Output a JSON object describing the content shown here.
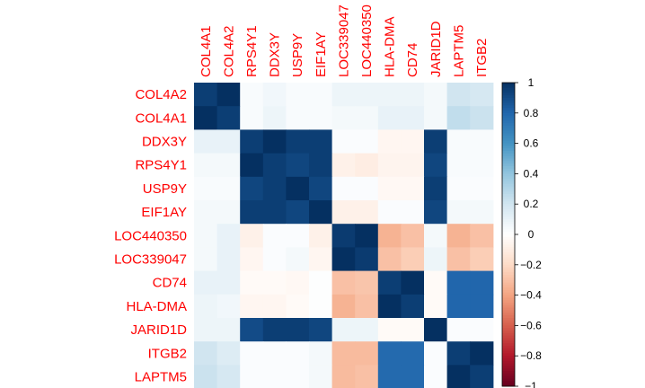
{
  "chart_data": {
    "type": "heatmap",
    "title": "",
    "columns": [
      "COL4A1",
      "COL4A2",
      "RPS4Y1",
      "DDX3Y",
      "USP9Y",
      "EIF1AY",
      "LOC339047",
      "LOC440350",
      "HLA-DMA",
      "CD74",
      "JARID1D",
      "LAPTM5",
      "ITGB2"
    ],
    "rows": [
      "COL4A2",
      "COL4A1",
      "DDX3Y",
      "RPS4Y1",
      "USP9Y",
      "EIF1AY",
      "LOC440350",
      "LOC339047",
      "CD74",
      "HLA-DMA",
      "JARID1D",
      "ITGB2",
      "LAPTM5"
    ],
    "values": [
      [
        0.95,
        1.0,
        0.03,
        0.06,
        0.03,
        0.03,
        0.08,
        0.08,
        0.08,
        0.08,
        0.05,
        0.2,
        0.18
      ],
      [
        1.0,
        0.95,
        0.03,
        0.08,
        0.03,
        0.03,
        0.05,
        0.05,
        0.1,
        0.1,
        0.05,
        0.25,
        0.22
      ],
      [
        0.1,
        0.1,
        0.95,
        1.0,
        0.95,
        0.95,
        0.02,
        0.02,
        -0.05,
        -0.05,
        0.95,
        0.03,
        0.03
      ],
      [
        0.05,
        0.05,
        1.0,
        0.95,
        0.92,
        0.95,
        -0.08,
        -0.1,
        -0.06,
        -0.06,
        0.92,
        0.03,
        0.03
      ],
      [
        0.03,
        0.03,
        0.92,
        0.95,
        1.0,
        0.92,
        0.02,
        0.02,
        -0.04,
        -0.04,
        0.95,
        0.02,
        0.02
      ],
      [
        0.05,
        0.05,
        0.95,
        0.95,
        0.92,
        1.0,
        -0.08,
        -0.08,
        0.02,
        0.02,
        0.92,
        0.05,
        0.05
      ],
      [
        0.05,
        0.1,
        -0.08,
        0.02,
        0.02,
        -0.08,
        0.96,
        1.0,
        -0.35,
        -0.3,
        0.05,
        -0.35,
        -0.3
      ],
      [
        0.05,
        0.1,
        -0.05,
        0.02,
        0.05,
        -0.05,
        1.0,
        0.96,
        -0.3,
        -0.25,
        0.08,
        -0.3,
        -0.25
      ],
      [
        0.1,
        0.1,
        -0.03,
        -0.03,
        -0.04,
        0.01,
        -0.3,
        -0.28,
        0.95,
        1.0,
        -0.03,
        0.8,
        0.8
      ],
      [
        0.08,
        0.06,
        -0.05,
        -0.05,
        -0.03,
        0.01,
        -0.35,
        -0.3,
        1.0,
        0.95,
        -0.03,
        0.8,
        0.8
      ],
      [
        0.08,
        0.08,
        0.9,
        0.95,
        0.95,
        0.92,
        0.08,
        0.08,
        -0.03,
        -0.03,
        1.0,
        0.02,
        0.02
      ],
      [
        0.2,
        0.15,
        0.02,
        0.02,
        0.02,
        0.05,
        -0.32,
        -0.32,
        0.78,
        0.78,
        0.02,
        0.95,
        1.0
      ],
      [
        0.22,
        0.18,
        0.02,
        0.02,
        0.02,
        0.05,
        -0.32,
        -0.3,
        0.78,
        0.78,
        0.02,
        1.0,
        0.95
      ]
    ],
    "legend": {
      "position": "right",
      "ticks": [
        "1",
        "0.8",
        "0.6",
        "0.4",
        "0.2",
        "0",
        "−0.2",
        "−0.4",
        "−0.6",
        "−0.8",
        "−1"
      ],
      "range": [
        -1,
        1
      ]
    },
    "colors": {
      "label": "#ff0000",
      "scale": [
        "#67001f",
        "#b2182b",
        "#d6604d",
        "#f4a582",
        "#fddbc7",
        "#ffffff",
        "#d1e5f0",
        "#92c5de",
        "#4393c3",
        "#2166ac",
        "#053061"
      ]
    }
  }
}
